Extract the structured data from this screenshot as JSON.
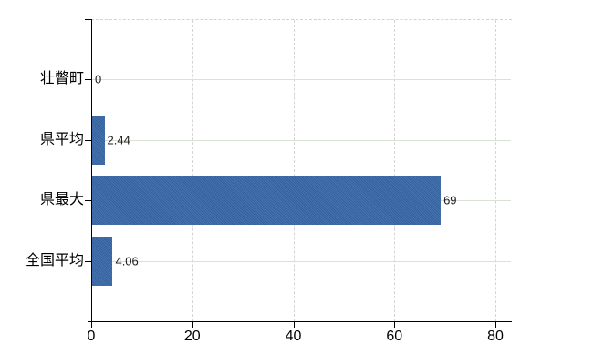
{
  "chart_data": {
    "type": "bar",
    "orientation": "horizontal",
    "title": "",
    "xlabel": "",
    "ylabel": "",
    "categories": [
      "壮瞥町",
      "県平均",
      "県最大",
      "全国平均"
    ],
    "values": [
      0,
      2.44,
      69,
      4.06
    ],
    "value_labels": [
      "0",
      "2.44",
      "69",
      "4.06"
    ],
    "x_ticks": [
      0,
      20,
      40,
      60,
      80
    ],
    "xlim": [
      0,
      83
    ],
    "grid": true,
    "legend": "none",
    "bar_color": "#3d6caa"
  }
}
